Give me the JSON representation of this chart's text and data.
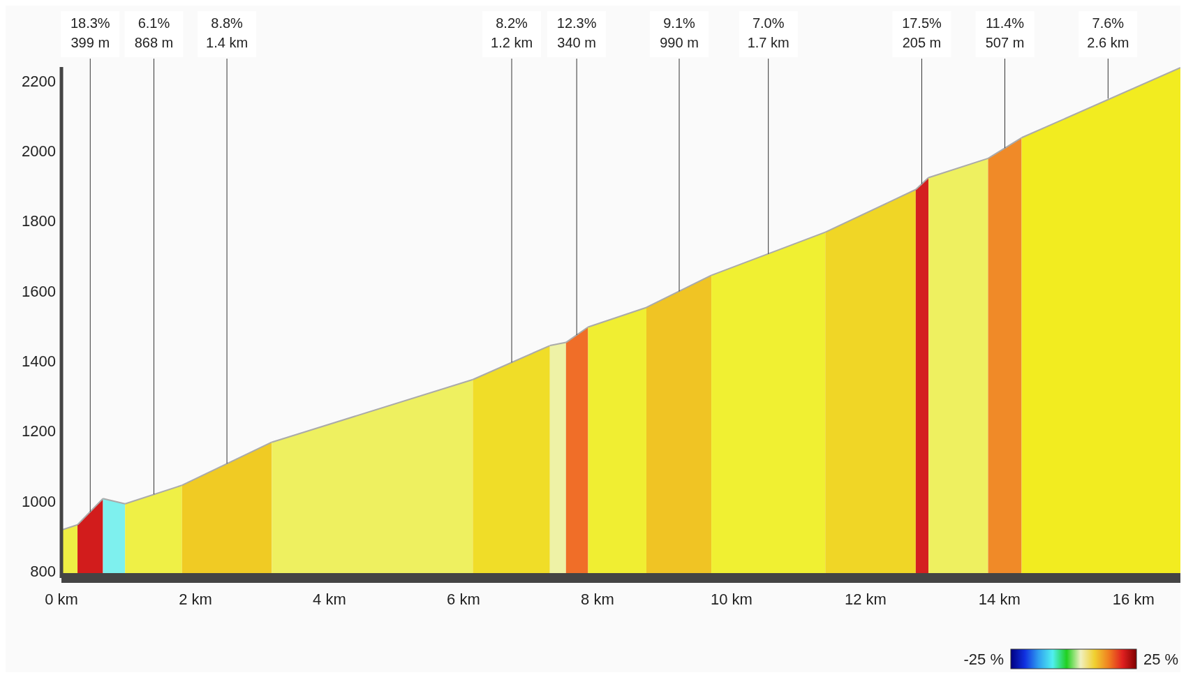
{
  "chart_data": {
    "type": "area",
    "xlim": [
      0,
      16.7
    ],
    "ylim": [
      780,
      2240
    ],
    "xticks": [
      {
        "value": 0,
        "label": "0 km"
      },
      {
        "value": 2,
        "label": "2 km"
      },
      {
        "value": 4,
        "label": "4 km"
      },
      {
        "value": 6,
        "label": "6 km"
      },
      {
        "value": 8,
        "label": "8 km"
      },
      {
        "value": 10,
        "label": "10 km"
      },
      {
        "value": 12,
        "label": "12 km"
      },
      {
        "value": 14,
        "label": "14 km"
      },
      {
        "value": 16,
        "label": "16 km"
      }
    ],
    "yticks": [
      800,
      1000,
      1200,
      1400,
      1600,
      1800,
      2000,
      2200
    ],
    "grid": false,
    "series": [
      {
        "color": "#eeee44",
        "x": [
          0,
          0.24
        ],
        "values": [
          917,
          932
        ]
      },
      {
        "color": "#d21c1c",
        "x": [
          0.24,
          0.62
        ],
        "values": [
          932,
          1007
        ]
      },
      {
        "color": "#7ef0ee",
        "x": [
          0.62,
          0.95
        ],
        "values": [
          1007,
          992
        ]
      },
      {
        "color": "#eff046",
        "x": [
          0.95,
          1.8
        ],
        "values": [
          992,
          1045
        ]
      },
      {
        "color": "#f0cb24",
        "x": [
          1.8,
          3.14
        ],
        "values": [
          1045,
          1168
        ]
      },
      {
        "color": "#eef060",
        "x": [
          3.14,
          6.14
        ],
        "values": [
          1168,
          1347
        ]
      },
      {
        "color": "#f0dd28",
        "x": [
          6.14,
          7.29
        ],
        "values": [
          1347,
          1444
        ]
      },
      {
        "color": "#eef2a6",
        "x": [
          7.29,
          7.53
        ],
        "values": [
          1444,
          1453
        ]
      },
      {
        "color": "#f06e28",
        "x": [
          7.53,
          7.86
        ],
        "values": [
          1453,
          1497
        ]
      },
      {
        "color": "#f0ee32",
        "x": [
          7.86,
          8.73
        ],
        "values": [
          1497,
          1553
        ]
      },
      {
        "color": "#f0c424",
        "x": [
          8.73,
          9.7
        ],
        "values": [
          1553,
          1645
        ]
      },
      {
        "color": "#f0f032",
        "x": [
          9.7,
          11.4
        ],
        "values": [
          1645,
          1768
        ]
      },
      {
        "color": "#f0d626",
        "x": [
          11.4,
          12.75
        ],
        "values": [
          1768,
          1890
        ]
      },
      {
        "color": "#d42020",
        "x": [
          12.75,
          12.94
        ],
        "values": [
          1890,
          1924
        ]
      },
      {
        "color": "#eef060",
        "x": [
          12.94,
          13.83
        ],
        "values": [
          1924,
          1979
        ]
      },
      {
        "color": "#f08a28",
        "x": [
          13.83,
          14.33
        ],
        "values": [
          1979,
          2038
        ]
      },
      {
        "color": "#f2ec20",
        "x": [
          14.33,
          16.7
        ],
        "values": [
          2038,
          2238
        ]
      }
    ],
    "annotations": [
      {
        "text": "18.3%\n399 m",
        "x": 0.43,
        "y": 969
      },
      {
        "text": "6.1%\n868 m",
        "x": 1.38,
        "y": 1019
      },
      {
        "text": "8.8%\n1.4 km",
        "x": 2.47,
        "y": 1107
      },
      {
        "text": "8.2%\n1.2 km",
        "x": 6.72,
        "y": 1396
      },
      {
        "text": "12.3%\n340 m",
        "x": 7.69,
        "y": 1474
      },
      {
        "text": "9.1%\n990 m",
        "x": 9.22,
        "y": 1599
      },
      {
        "text": "7.0%\n1.7 km",
        "x": 10.55,
        "y": 1706
      },
      {
        "text": "17.5%\n205 m",
        "x": 12.84,
        "y": 1906
      },
      {
        "text": "11.4%\n507 m",
        "x": 14.08,
        "y": 2008
      },
      {
        "text": "7.6%\n2.6 km",
        "x": 15.62,
        "y": 2150
      },
      "-25 %",
      "25 %"
    ]
  }
}
